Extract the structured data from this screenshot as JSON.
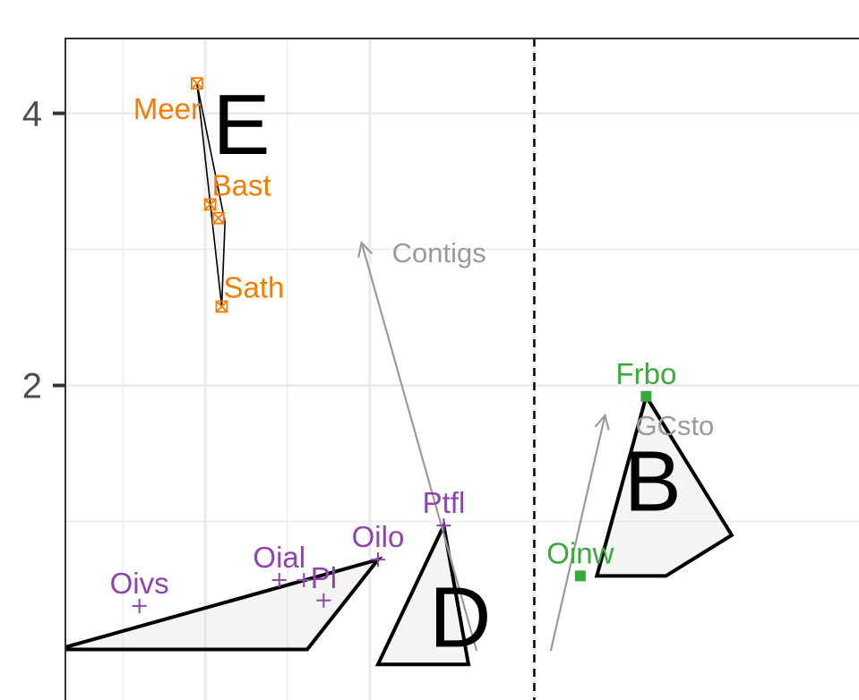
{
  "chart_data": {
    "type": "scatter",
    "title": "",
    "xlabel": "",
    "ylabel": "",
    "ylim": [
      -0.45,
      4.55
    ],
    "xlim": [
      -0.35,
      4.55
    ],
    "y_ticks": [
      {
        "value": 4,
        "label": "4"
      },
      {
        "value": 2,
        "label": "2"
      }
    ],
    "y_minor_gridlines": [
      3,
      1
    ],
    "x_gridlines": [
      0.5,
      1.5,
      2.5
    ],
    "x_minor_gridlines": [
      0,
      1
    ],
    "grid": true,
    "vline_dashed_x": 2.5,
    "group_colors": {
      "E": "#f57c00",
      "C": "#8e44ad",
      "B": "#3aa83a",
      "D": "#8e44ad"
    },
    "series": [
      {
        "group": "E",
        "color": "#f57c00",
        "marker": "box-x",
        "points": [
          {
            "label": "Meer",
            "x": 0.45,
            "y": 4.22
          },
          {
            "label": "Bast",
            "x": 0.53,
            "y": 3.33
          },
          {
            "label": "",
            "x": 0.58,
            "y": 3.23
          },
          {
            "label": "Sath",
            "x": 0.6,
            "y": 2.58
          }
        ]
      },
      {
        "group": "C",
        "color": "#8e44ad",
        "marker": "plus",
        "points": [
          {
            "label": "Oilo",
            "x": 1.55,
            "y": 0.72
          },
          {
            "label": "Oial",
            "x": 0.95,
            "y": 0.57
          },
          {
            "label": "",
            "x": 1.1,
            "y": 0.57
          },
          {
            "label": "Ptfl",
            "x": 1.95,
            "y": 0.97
          },
          {
            "label": "Oivs",
            "x": 0.1,
            "y": 0.38
          },
          {
            "label": "Pl",
            "x": 1.22,
            "y": 0.42
          }
        ]
      },
      {
        "group": "B",
        "color": "#3aa83a",
        "marker": "square",
        "points": [
          {
            "label": "Frbo",
            "x": 3.18,
            "y": 1.92
          },
          {
            "label": "Oinw",
            "x": 2.78,
            "y": 0.6
          }
        ]
      }
    ],
    "group_labels": [
      {
        "text": "E",
        "x": 0.72,
        "y": 3.7
      },
      {
        "text": "B",
        "x": 3.22,
        "y": 1.08
      },
      {
        "text": "D",
        "x": 2.05,
        "y": 0.08
      }
    ],
    "hulls": [
      {
        "group": "E",
        "points": [
          [
            0.45,
            4.22
          ],
          [
            0.62,
            3.2
          ],
          [
            0.6,
            2.58
          ]
        ]
      },
      {
        "group": "C",
        "points": [
          [
            -0.4,
            0.06
          ],
          [
            1.55,
            0.72
          ],
          [
            1.12,
            0.06
          ]
        ]
      },
      {
        "group": "D",
        "points": [
          [
            1.55,
            -0.05
          ],
          [
            1.95,
            0.97
          ],
          [
            2.1,
            -0.05
          ]
        ]
      },
      {
        "group": "B",
        "points": [
          [
            2.88,
            0.6
          ],
          [
            3.18,
            1.92
          ],
          [
            3.7,
            0.9
          ],
          [
            3.3,
            0.6
          ]
        ]
      }
    ],
    "vectors": [
      {
        "label": "Contigs",
        "x0": 2.15,
        "y0": 0.05,
        "x1": 1.45,
        "y1": 3.05
      },
      {
        "label": "GCsto",
        "x0": 2.6,
        "y0": 0.05,
        "x1": 2.93,
        "y1": 1.78
      }
    ]
  }
}
